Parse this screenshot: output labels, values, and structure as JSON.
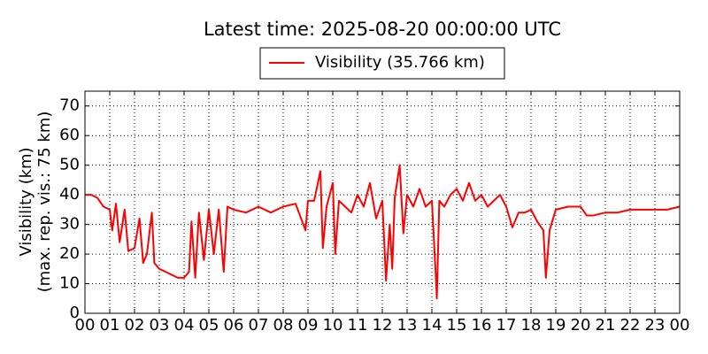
{
  "chart_data": {
    "type": "line",
    "title": "Latest time: 2025-08-20 00:00:00 UTC",
    "ylabel": [
      "Visibility (km)",
      "(max. rep. vis.: 75 km)"
    ],
    "x": [
      0,
      0.25,
      0.5,
      0.75,
      1,
      1.1,
      1.25,
      1.4,
      1.6,
      1.75,
      2,
      2.2,
      2.35,
      2.5,
      2.7,
      2.8,
      3,
      3.25,
      3.5,
      3.75,
      4,
      4.2,
      4.3,
      4.45,
      4.6,
      4.8,
      5,
      5.2,
      5.4,
      5.6,
      5.75,
      6,
      6.5,
      7,
      7.5,
      8,
      8.5,
      8.9,
      9,
      9.25,
      9.5,
      9.6,
      9.75,
      10,
      10.1,
      10.25,
      10.5,
      10.75,
      11,
      11.25,
      11.5,
      11.75,
      12,
      12.15,
      12.3,
      12.4,
      12.5,
      12.7,
      12.85,
      13,
      13.25,
      13.5,
      13.75,
      14,
      14.15,
      14.2,
      14.3,
      14.5,
      14.75,
      15,
      15.25,
      15.5,
      15.75,
      16,
      16.25,
      16.5,
      16.75,
      17,
      17.25,
      17.5,
      17.75,
      18,
      18.25,
      18.5,
      18.6,
      18.75,
      19,
      19.5,
      20,
      20.25,
      20.5,
      21,
      21.5,
      22,
      22.5,
      23,
      23.5,
      24
    ],
    "series": [
      {
        "name": "Visibility (35.766 km)",
        "color": "#ff0000",
        "values": [
          40,
          40,
          39,
          36,
          35,
          28,
          37,
          24,
          35,
          21,
          22,
          32,
          17,
          20,
          34,
          17,
          15,
          14,
          13,
          12,
          12,
          14,
          31,
          12,
          34,
          18,
          35,
          20,
          35,
          14,
          36,
          35,
          34,
          36,
          34,
          36,
          37,
          28,
          38,
          38,
          48,
          22,
          36,
          44,
          20,
          38,
          36,
          34,
          40,
          36,
          44,
          32,
          38,
          11,
          30,
          15,
          39,
          50,
          27,
          40,
          36,
          42,
          36,
          38,
          14,
          5,
          38,
          36,
          40,
          42,
          38,
          44,
          38,
          40,
          36,
          38,
          40,
          36,
          29,
          34,
          34,
          35,
          31,
          28,
          12,
          28,
          35,
          36,
          36,
          33,
          33,
          34,
          34,
          35,
          35,
          35,
          35,
          36
        ]
      }
    ],
    "xlim": [
      0,
      24
    ],
    "xticks": [
      {
        "value": 0,
        "label": "00"
      },
      {
        "value": 1,
        "label": "01"
      },
      {
        "value": 2,
        "label": "02"
      },
      {
        "value": 3,
        "label": "03"
      },
      {
        "value": 4,
        "label": "04"
      },
      {
        "value": 5,
        "label": "05"
      },
      {
        "value": 6,
        "label": "06"
      },
      {
        "value": 7,
        "label": "07"
      },
      {
        "value": 8,
        "label": "08"
      },
      {
        "value": 9,
        "label": "09"
      },
      {
        "value": 10,
        "label": "10"
      },
      {
        "value": 11,
        "label": "11"
      },
      {
        "value": 12,
        "label": "12"
      },
      {
        "value": 13,
        "label": "13"
      },
      {
        "value": 14,
        "label": "14"
      },
      {
        "value": 15,
        "label": "15"
      },
      {
        "value": 16,
        "label": "16"
      },
      {
        "value": 17,
        "label": "17"
      },
      {
        "value": 18,
        "label": "18"
      },
      {
        "value": 19,
        "label": "19"
      },
      {
        "value": 20,
        "label": "20"
      },
      {
        "value": 21,
        "label": "21"
      },
      {
        "value": 22,
        "label": "22"
      },
      {
        "value": 23,
        "label": "23"
      },
      {
        "value": 24,
        "label": "00"
      }
    ],
    "ylim": [
      0,
      75
    ],
    "yticks": [
      0,
      10,
      20,
      30,
      40,
      50,
      60,
      70
    ],
    "grid": true,
    "legend": "top"
  }
}
